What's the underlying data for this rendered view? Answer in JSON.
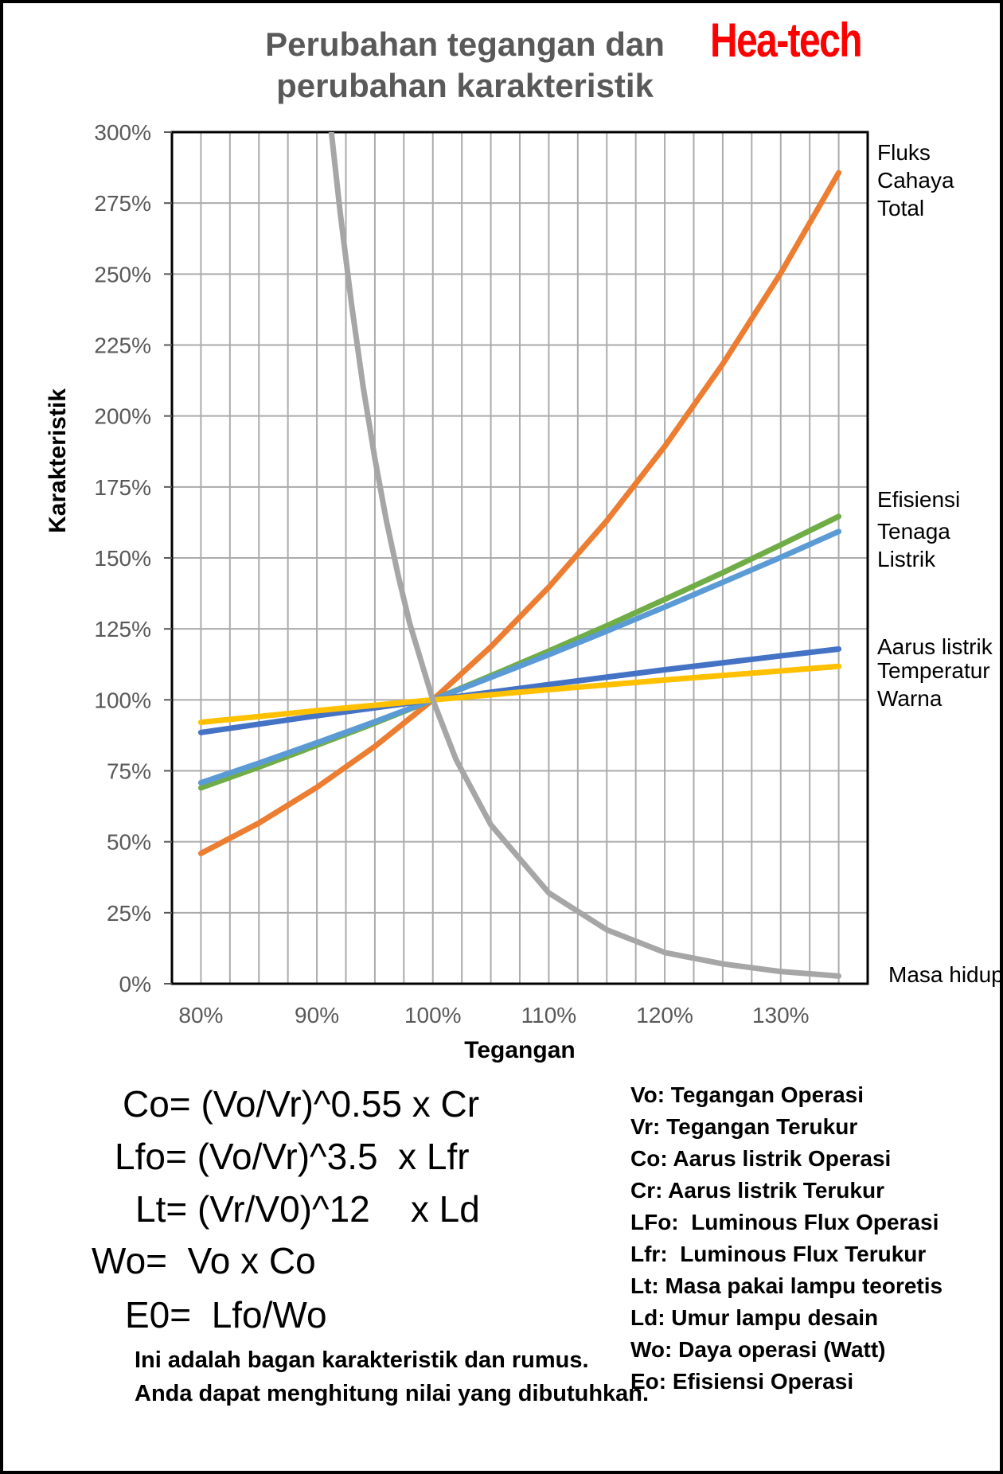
{
  "title": {
    "line1": "Perubahan tegangan dan",
    "line2": "perubahan karakteristik",
    "title_color": "#595959",
    "brand": "Hea-tech",
    "brand_color": "#ff0000"
  },
  "chart_data": {
    "type": "line",
    "xlabel": "Tegangan",
    "ylabel": "Karakteristik",
    "xlim": [
      77.5,
      137.5
    ],
    "ylim": [
      0,
      300
    ],
    "x_tick_values": [
      80,
      90,
      100,
      110,
      120,
      130
    ],
    "x_tick_labels": [
      "80%",
      "90%",
      "100%",
      "110%",
      "120%",
      "130%"
    ],
    "x_minor_grid_step": 2.5,
    "y_tick_step": 25,
    "y_tick_labels": [
      "0%",
      "25%",
      "50%",
      "75%",
      "100%",
      "125%",
      "150%",
      "175%",
      "200%",
      "225%",
      "250%",
      "275%",
      "300%"
    ],
    "grid_on": true,
    "grid_color": "#ABABAB",
    "axis_color": "#000000",
    "tick_label_color": "#595959",
    "legend_position": "right-outside",
    "series": [
      {
        "name": "Fluks Cahaya Total",
        "color": "#ED7D31",
        "points": [
          [
            80,
            45.9
          ],
          [
            85,
            56.6
          ],
          [
            90,
            69.2
          ],
          [
            95,
            83.6
          ],
          [
            100,
            100
          ],
          [
            105,
            118.7
          ],
          [
            110,
            139.7
          ],
          [
            115,
            163.1
          ],
          [
            120,
            189.3
          ],
          [
            125,
            218.3
          ],
          [
            130,
            250.3
          ],
          [
            135,
            285.7
          ]
        ]
      },
      {
        "name": "Efisiensi",
        "color": "#70AD47",
        "points": [
          [
            80,
            69.0
          ],
          [
            85,
            76.3
          ],
          [
            90,
            84.0
          ],
          [
            95,
            91.8
          ],
          [
            100,
            100
          ],
          [
            105,
            108.5
          ],
          [
            110,
            117.2
          ],
          [
            115,
            126.1
          ],
          [
            120,
            135.4
          ],
          [
            125,
            144.8
          ],
          [
            130,
            154.6
          ],
          [
            135,
            164.6
          ]
        ]
      },
      {
        "name": "Tenaga Listrik",
        "color": "#5B9BD5",
        "points": [
          [
            80,
            70.8
          ],
          [
            85,
            77.7
          ],
          [
            90,
            84.9
          ],
          [
            95,
            92.3
          ],
          [
            100,
            100
          ],
          [
            105,
            107.9
          ],
          [
            110,
            115.9
          ],
          [
            115,
            124.2
          ],
          [
            120,
            132.7
          ],
          [
            125,
            141.4
          ],
          [
            130,
            150.2
          ],
          [
            135,
            159.3
          ]
        ]
      },
      {
        "name": "Aarus listrik",
        "color": "#4472C4",
        "points": [
          [
            80,
            88.5
          ],
          [
            90,
            94.4
          ],
          [
            100,
            100
          ],
          [
            110,
            105.4
          ],
          [
            120,
            110.6
          ],
          [
            130,
            115.5
          ],
          [
            135,
            117.9
          ]
        ]
      },
      {
        "name": "Temperatur Warna",
        "color": "#FFC000",
        "points": [
          [
            80,
            92.1
          ],
          [
            90,
            96.2
          ],
          [
            100,
            100
          ],
          [
            110,
            103.6
          ],
          [
            120,
            107.0
          ],
          [
            130,
            110.2
          ],
          [
            135,
            111.8
          ]
        ]
      },
      {
        "name": "Masa hidup",
        "color": "#A6A6A6",
        "points": [
          [
            91.25,
            300
          ],
          [
            92,
            272
          ],
          [
            93,
            239
          ],
          [
            94,
            210
          ],
          [
            95,
            185
          ],
          [
            96,
            163
          ],
          [
            97,
            144
          ],
          [
            98,
            127
          ],
          [
            100,
            100
          ],
          [
            102,
            79
          ],
          [
            105,
            56
          ],
          [
            110,
            32
          ],
          [
            115,
            19
          ],
          [
            120,
            11
          ],
          [
            125,
            7
          ],
          [
            130,
            4.3
          ],
          [
            135,
            2.7
          ]
        ]
      }
    ],
    "right_labels": [
      {
        "lines": [
          "Fluks",
          "Cahaya",
          "Total"
        ]
      },
      {
        "lines": [
          "Efisiensi"
        ]
      },
      {
        "lines": [
          "Tenaga",
          "Listrik"
        ]
      },
      {
        "lines": [
          "Aarus listrik"
        ]
      },
      {
        "lines": [
          "Temperatur",
          "Warna"
        ]
      },
      {
        "lines": [
          "Masa hidup"
        ]
      }
    ]
  },
  "formulas": [
    "Co= (Vo/Vr)^0.55 x Cr",
    "Lfo= (Vo/Vr)^3.5  x Lfr",
    "Lt= (Vr/V0)^12    x Ld",
    "Wo=  Vo x Co",
    "E0=  Lfo/Wo"
  ],
  "legend": [
    "Vo: Tegangan Operasi",
    "Vr: Tegangan Terukur",
    "Co: Aarus listrik Operasi",
    "Cr: Aarus listrik Terukur",
    "LFo:  Luminous Flux Operasi",
    "Lfr:  Luminous Flux Terukur",
    "Lt: Masa pakai lampu teoretis",
    "Ld: Umur lampu desain",
    "Wo: Daya operasi (Watt)",
    "Eo: Efisiensi Operasi"
  ],
  "footnote": [
    "Ini adalah bagan karakteristik dan rumus.",
    "Anda dapat menghitung nilai yang dibutuhkan."
  ]
}
